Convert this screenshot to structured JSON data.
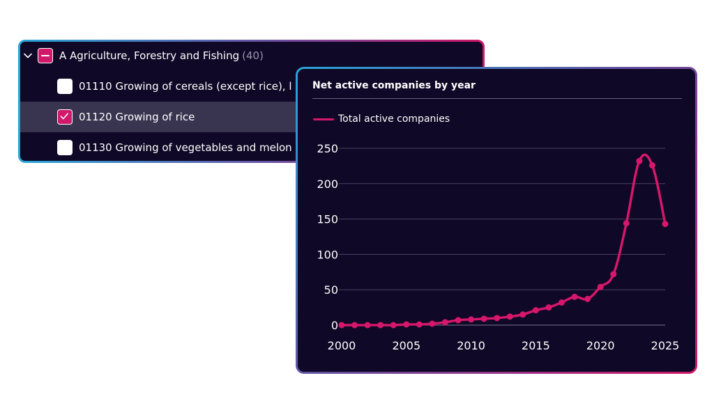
{
  "tree": {
    "parent": {
      "label": "A Agriculture, Forestry and Fishing",
      "count": "(40)",
      "state": "indeterminate"
    },
    "items": [
      {
        "label": "01110 Growing of cereals (except rice), l",
        "checked": false
      },
      {
        "label": "01120 Growing of rice",
        "checked": true
      },
      {
        "label": "01130 Growing of vegetables and melon",
        "checked": false
      }
    ]
  },
  "chart": {
    "title": "Net active companies by year"
  },
  "colors": {
    "accent": "#d6176c",
    "panel_bg": "#0f0826",
    "hover_row": "#39344f"
  },
  "chart_data": {
    "type": "line",
    "title": "Net active companies by year",
    "xlabel": "",
    "ylabel": "",
    "xlim": [
      2000,
      2025
    ],
    "ylim": [
      0,
      250
    ],
    "x_ticks": [
      2000,
      2005,
      2010,
      2015,
      2020,
      2025
    ],
    "y_ticks": [
      0,
      50,
      100,
      150,
      200,
      250
    ],
    "grid": true,
    "legend_position": "top-left",
    "series": [
      {
        "name": "Total active companies",
        "color": "#d6176c",
        "x": [
          2000,
          2001,
          2002,
          2003,
          2004,
          2005,
          2006,
          2007,
          2008,
          2009,
          2010,
          2011,
          2012,
          2013,
          2014,
          2015,
          2016,
          2017,
          2018,
          2019,
          2020,
          2021,
          2022,
          2023,
          2024,
          2025
        ],
        "y": [
          0,
          0,
          0,
          0,
          0,
          1,
          1,
          2,
          4,
          7,
          8,
          9,
          10,
          12,
          15,
          21,
          25,
          32,
          40,
          37,
          54,
          72,
          144,
          232,
          226,
          143
        ]
      }
    ]
  }
}
